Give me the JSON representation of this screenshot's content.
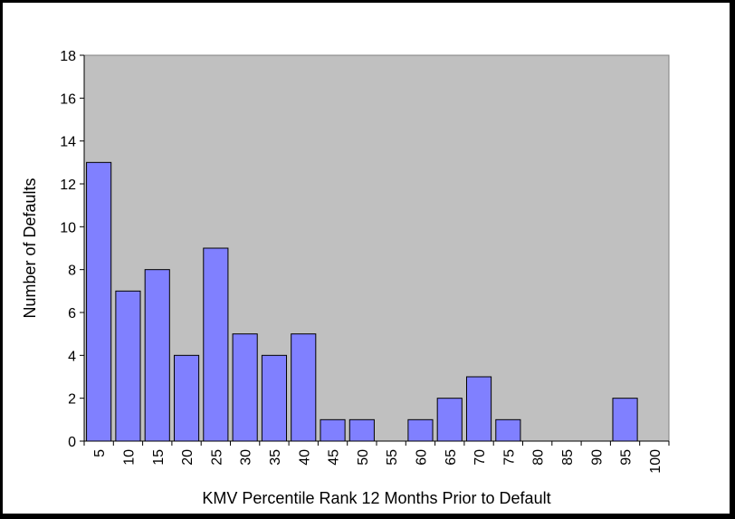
{
  "chart_data": {
    "type": "bar",
    "title": "",
    "xlabel": "KMV Percentile Rank 12 Months Prior to Default",
    "ylabel": "Number of Defaults",
    "categories": [
      "5",
      "10",
      "15",
      "20",
      "25",
      "30",
      "35",
      "40",
      "45",
      "50",
      "55",
      "60",
      "65",
      "70",
      "75",
      "80",
      "85",
      "90",
      "95",
      "100"
    ],
    "values": [
      13,
      7,
      8,
      4,
      9,
      5,
      4,
      5,
      1,
      1,
      0,
      1,
      2,
      3,
      1,
      0,
      0,
      0,
      2,
      0
    ],
    "ylim": [
      0,
      18
    ],
    "yticks": [
      0,
      2,
      4,
      6,
      8,
      10,
      12,
      14,
      16,
      18
    ],
    "ytick_labels": [
      "0",
      "2",
      "4",
      "6",
      "8",
      "10",
      "12",
      "14",
      "16",
      "18"
    ],
    "grid": false,
    "legend": "none",
    "colors": {
      "bar_fill": "#8080ff",
      "bar_stroke": "#000000",
      "plot_background": "#c0c0c0",
      "frame": "#000000",
      "page_background": "#ffffff"
    }
  }
}
